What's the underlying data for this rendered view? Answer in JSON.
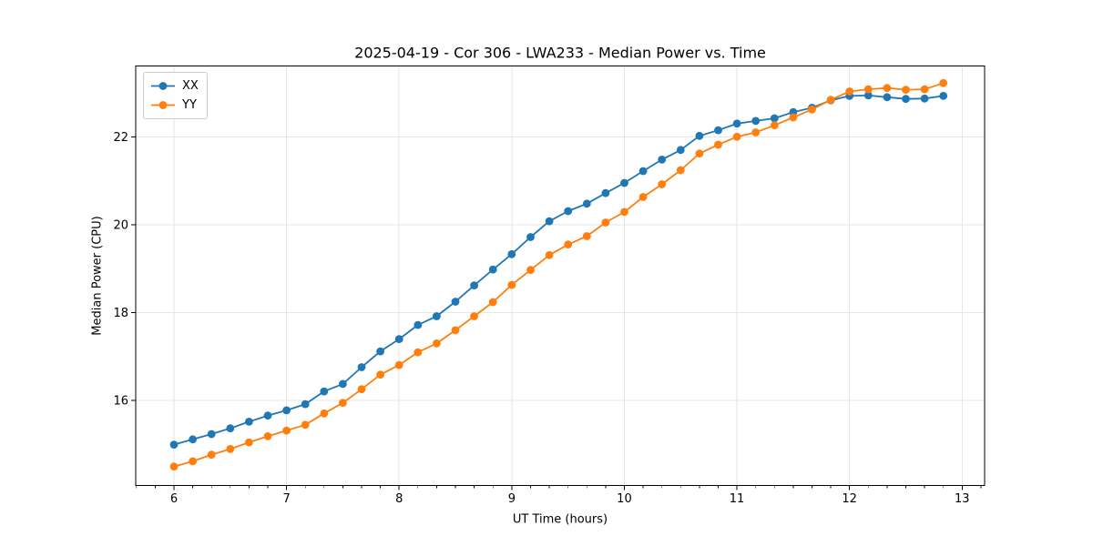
{
  "chart_data": {
    "type": "line",
    "title": "2025-04-19 - Cor 306 - LWA233 - Median Power vs. Time",
    "xlabel": "UT Time (hours)",
    "ylabel": "Median Power (CPU)",
    "xlim": [
      5.66,
      13.2
    ],
    "ylim": [
      14.07,
      23.61
    ],
    "x_ticks": [
      6,
      7,
      8,
      9,
      10,
      11,
      12,
      13
    ],
    "y_ticks": [
      16,
      18,
      20,
      22
    ],
    "x_minor_step": 0.1666667,
    "grid": true,
    "grid_color": "#e6e6e6",
    "legend_position": "upper-left",
    "x_start": 6.0,
    "x_step": 0.1666667,
    "series": [
      {
        "name": "XX",
        "color": "#1f77b4",
        "values": [
          15.0,
          15.12,
          15.24,
          15.37,
          15.52,
          15.66,
          15.78,
          15.92,
          16.21,
          16.38,
          16.76,
          17.12,
          17.4,
          17.72,
          17.92,
          18.25,
          18.62,
          18.98,
          19.33,
          19.72,
          20.08,
          20.31,
          20.48,
          20.72,
          20.95,
          21.22,
          21.48,
          21.7,
          22.02,
          22.15,
          22.3,
          22.36,
          22.42,
          22.56,
          22.66,
          22.83,
          22.93,
          22.94,
          22.9,
          22.86,
          22.87,
          22.93
        ]
      },
      {
        "name": "YY",
        "color": "#ff7f0e",
        "values": [
          14.5,
          14.62,
          14.77,
          14.9,
          15.05,
          15.19,
          15.32,
          15.45,
          15.71,
          15.95,
          16.26,
          16.59,
          16.81,
          17.1,
          17.3,
          17.6,
          17.92,
          18.24,
          18.63,
          18.97,
          19.31,
          19.55,
          19.74,
          20.05,
          20.29,
          20.63,
          20.92,
          21.24,
          21.62,
          21.82,
          22.0,
          22.1,
          22.26,
          22.44,
          22.62,
          22.84,
          23.03,
          23.08,
          23.11,
          23.07,
          23.08,
          23.22
        ]
      }
    ]
  }
}
